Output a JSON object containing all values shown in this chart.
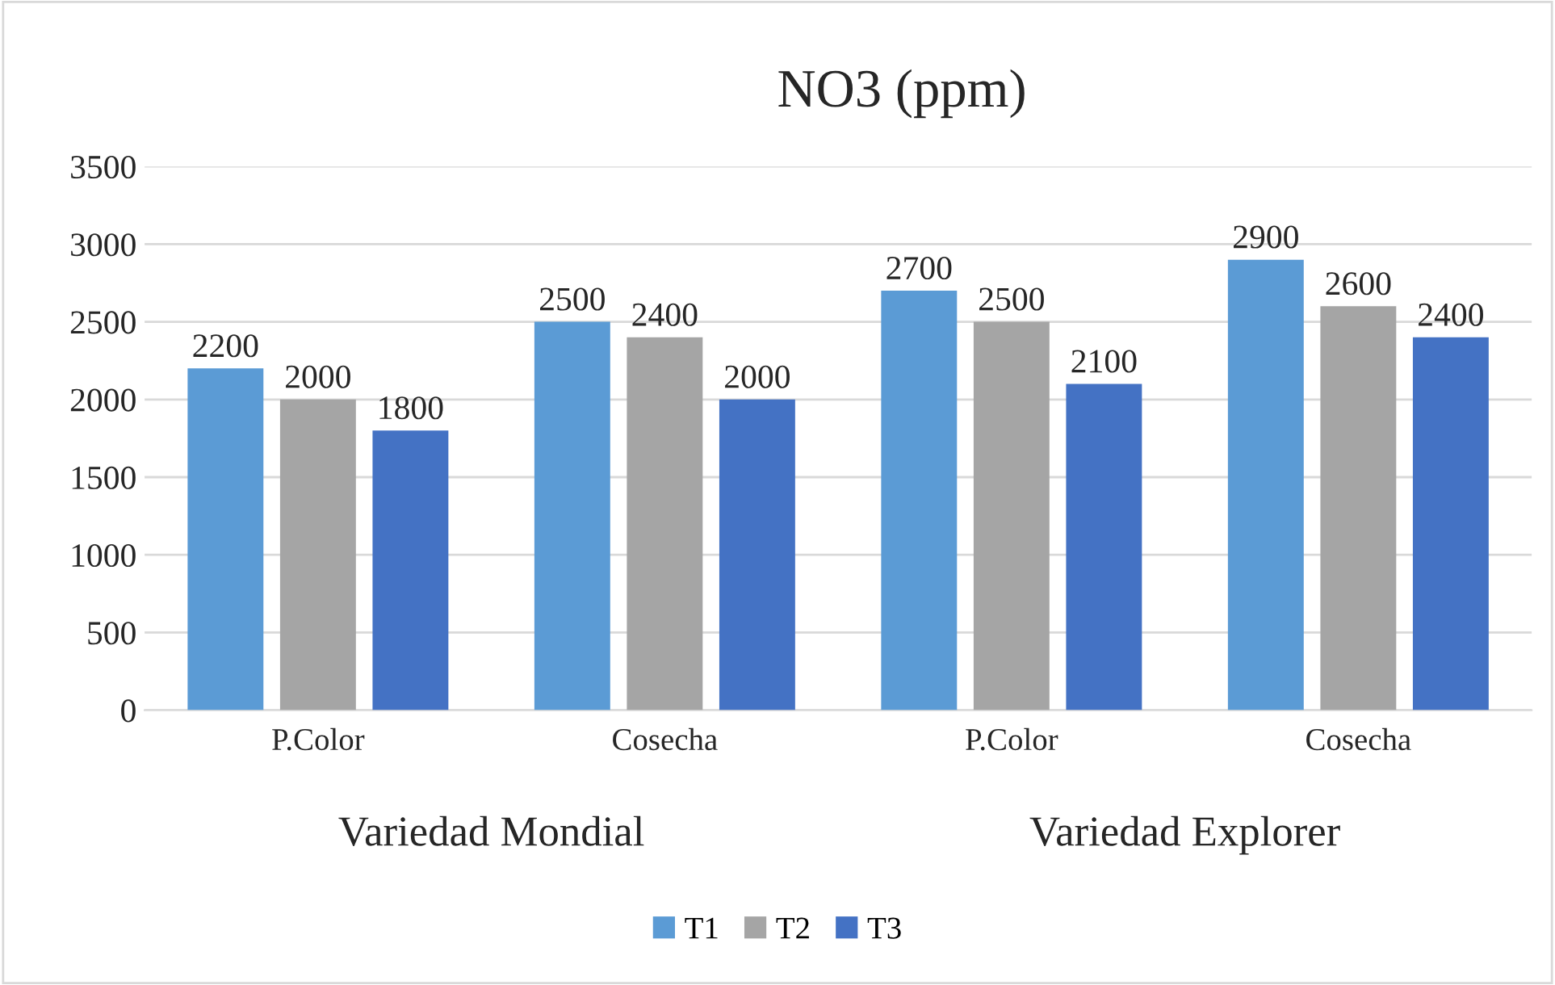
{
  "chart_data": {
    "type": "bar",
    "title": "NO3 (ppm)",
    "categories": [
      "P.Color",
      "Cosecha",
      "P.Color",
      "Cosecha"
    ],
    "series": [
      {
        "name": "T1",
        "color": "#5b9bd5",
        "values": [
          2200,
          2500,
          2700,
          2900
        ]
      },
      {
        "name": "T2",
        "color": "#a5a5a5",
        "values": [
          2000,
          2400,
          2500,
          2600
        ]
      },
      {
        "name": "T3",
        "color": "#4472c4",
        "values": [
          1800,
          2000,
          2100,
          2400
        ]
      }
    ],
    "annotations": [
      "Variedad Mondial",
      "Variedad Explorer"
    ],
    "ylim": [
      0,
      3500
    ],
    "yticks": [
      0,
      500,
      1000,
      1500,
      2000,
      2500,
      3000,
      3500
    ],
    "grid": "y",
    "legend": "bottom",
    "data_labels": true
  }
}
